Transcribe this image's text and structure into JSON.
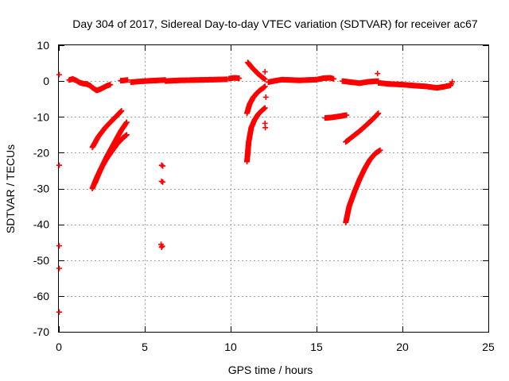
{
  "chart_data": {
    "type": "scatter",
    "title": "Day 304 of 2017, Sidereal Day-to-day VTEC variation (SDTVAR) for receiver ac67",
    "xlabel": "GPS time / hours",
    "ylabel": "SDTVAR / TECUs",
    "xlim": [
      0,
      25
    ],
    "ylim": [
      -70,
      10
    ],
    "xticks": [
      0,
      5,
      10,
      15,
      20,
      25
    ],
    "yticks": [
      10,
      0,
      -10,
      -20,
      -30,
      -40,
      -50,
      -60,
      -70
    ],
    "grid": true,
    "marker": "+",
    "color": "#ff0000",
    "segments": [
      {
        "x": [
          0.6,
          0.8,
          1.0,
          1.2,
          1.4,
          1.6
        ],
        "y": [
          0.3,
          0.6,
          0.2,
          -0.4,
          -0.7,
          -0.8
        ]
      },
      {
        "x": [
          1.6,
          1.8,
          2.0,
          2.2,
          2.4,
          2.6,
          2.8,
          3.0
        ],
        "y": [
          -0.8,
          -1.2,
          -2.0,
          -2.6,
          -2.3,
          -1.8,
          -1.3,
          -1.0
        ]
      },
      {
        "x": [
          3.6,
          3.8,
          4.0
        ],
        "y": [
          0.1,
          0.2,
          0.3
        ]
      },
      {
        "x": [
          4.2,
          5.0,
          5.8,
          6.2
        ],
        "y": [
          -0.3,
          0.0,
          0.2,
          0.3
        ]
      },
      {
        "x": [
          6.2,
          7.0,
          8.0,
          9.0,
          9.8
        ],
        "y": [
          0.0,
          0.2,
          0.3,
          0.4,
          0.5
        ]
      },
      {
        "x": [
          9.9,
          10.2,
          10.5
        ],
        "y": [
          0.7,
          0.9,
          0.8
        ]
      },
      {
        "x": [
          11.0,
          11.2,
          11.4,
          11.6,
          11.8,
          12.0
        ],
        "y": [
          5.2,
          4.0,
          3.0,
          2.0,
          1.2,
          0.5
        ]
      },
      {
        "x": [
          12.2,
          12.6,
          13.0,
          13.5,
          14.0,
          14.5,
          15.0
        ],
        "y": [
          -0.3,
          0.1,
          0.4,
          0.3,
          0.2,
          0.3,
          0.4
        ]
      },
      {
        "x": [
          15.0,
          15.4,
          15.8,
          16.0
        ],
        "y": [
          0.4,
          0.8,
          0.9,
          0.6
        ]
      },
      {
        "x": [
          16.5,
          17.0,
          17.5,
          18.0,
          18.6
        ],
        "y": [
          0.0,
          -0.3,
          -0.6,
          -0.2,
          0.0
        ]
      },
      {
        "x": [
          18.6,
          19.2,
          20.0,
          20.8,
          21.4,
          22.0,
          22.4,
          22.8
        ],
        "y": [
          -0.5,
          -0.8,
          -1.0,
          -1.3,
          -1.5,
          -1.9,
          -1.6,
          -1.2
        ]
      },
      {
        "x": [
          1.95,
          2.3,
          2.7,
          3.1,
          3.45,
          3.65
        ],
        "y": [
          -18.5,
          -15.5,
          -13.0,
          -11.0,
          -9.3,
          -8.3
        ]
      },
      {
        "x": [
          1.95,
          2.2,
          2.5,
          2.8,
          3.1,
          3.4,
          3.7,
          3.95
        ],
        "y": [
          -30.0,
          -27.0,
          -24.0,
          -21.5,
          -19.5,
          -17.5,
          -16.0,
          -15.0
        ]
      },
      {
        "x": [
          2.1,
          2.4,
          2.8,
          3.2,
          3.6,
          3.95
        ],
        "y": [
          -28.5,
          -25.0,
          -21.0,
          -17.5,
          -14.0,
          -11.5
        ]
      },
      {
        "x": [
          10.95,
          11.05,
          11.2,
          11.4,
          11.6,
          11.8,
          12.0
        ],
        "y": [
          -22.5,
          -17.0,
          -13.0,
          -10.8,
          -9.3,
          -8.3,
          -7.5
        ]
      },
      {
        "x": [
          10.95,
          11.1,
          11.3,
          11.5,
          11.7,
          11.9,
          12.0
        ],
        "y": [
          -9.0,
          -6.5,
          -4.7,
          -3.5,
          -2.6,
          -1.9,
          -1.5
        ]
      },
      {
        "x": [
          15.5,
          15.8,
          16.1,
          16.4,
          16.6,
          16.75
        ],
        "y": [
          -10.3,
          -10.2,
          -10.0,
          -9.8,
          -9.6,
          -9.5
        ]
      },
      {
        "x": [
          16.7,
          17.1,
          17.5,
          17.9,
          18.3,
          18.6
        ],
        "y": [
          -17.0,
          -15.5,
          -14.0,
          -12.3,
          -10.5,
          -9.0
        ]
      },
      {
        "x": [
          16.7,
          16.9,
          17.2,
          17.5,
          17.8,
          18.1,
          18.4,
          18.7
        ],
        "y": [
          -39.5,
          -35.0,
          -31.0,
          -27.5,
          -24.5,
          -22.0,
          -20.3,
          -19.3
        ]
      }
    ],
    "points": [
      {
        "x": 0.02,
        "y": 1.8
      },
      {
        "x": 0.02,
        "y": -23.5
      },
      {
        "x": 0.02,
        "y": -46.0
      },
      {
        "x": 0.02,
        "y": -52.3
      },
      {
        "x": 0.02,
        "y": -64.5
      },
      {
        "x": 5.98,
        "y": -23.5
      },
      {
        "x": 6.05,
        "y": -23.7
      },
      {
        "x": 5.98,
        "y": -28.0
      },
      {
        "x": 6.05,
        "y": -28.2
      },
      {
        "x": 5.95,
        "y": -45.6
      },
      {
        "x": 6.02,
        "y": -46.1
      },
      {
        "x": 5.98,
        "y": -46.4
      },
      {
        "x": 12.0,
        "y": 2.6
      },
      {
        "x": 12.05,
        "y": -4.5
      },
      {
        "x": 12.0,
        "y": -11.8
      },
      {
        "x": 12.02,
        "y": -13.0
      },
      {
        "x": 18.55,
        "y": 2.1
      },
      {
        "x": 22.9,
        "y": -0.2
      },
      {
        "x": 22.85,
        "y": -0.8
      }
    ]
  }
}
